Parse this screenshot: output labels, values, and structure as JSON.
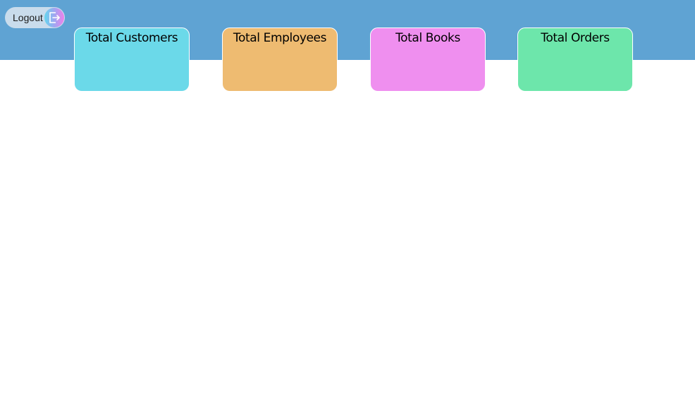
{
  "header": {
    "logout_label": "Logout",
    "logout_icon": "logout-icon",
    "band_color": "#5fa3d3"
  },
  "stats": [
    {
      "title": "Total Customers",
      "color": "#6bd9e9"
    },
    {
      "title": "Total Employees",
      "color": "#eebb71"
    },
    {
      "title": "Total Books",
      "color": "#ef8fef"
    },
    {
      "title": "Total Orders",
      "color": "#6de6ab"
    }
  ]
}
